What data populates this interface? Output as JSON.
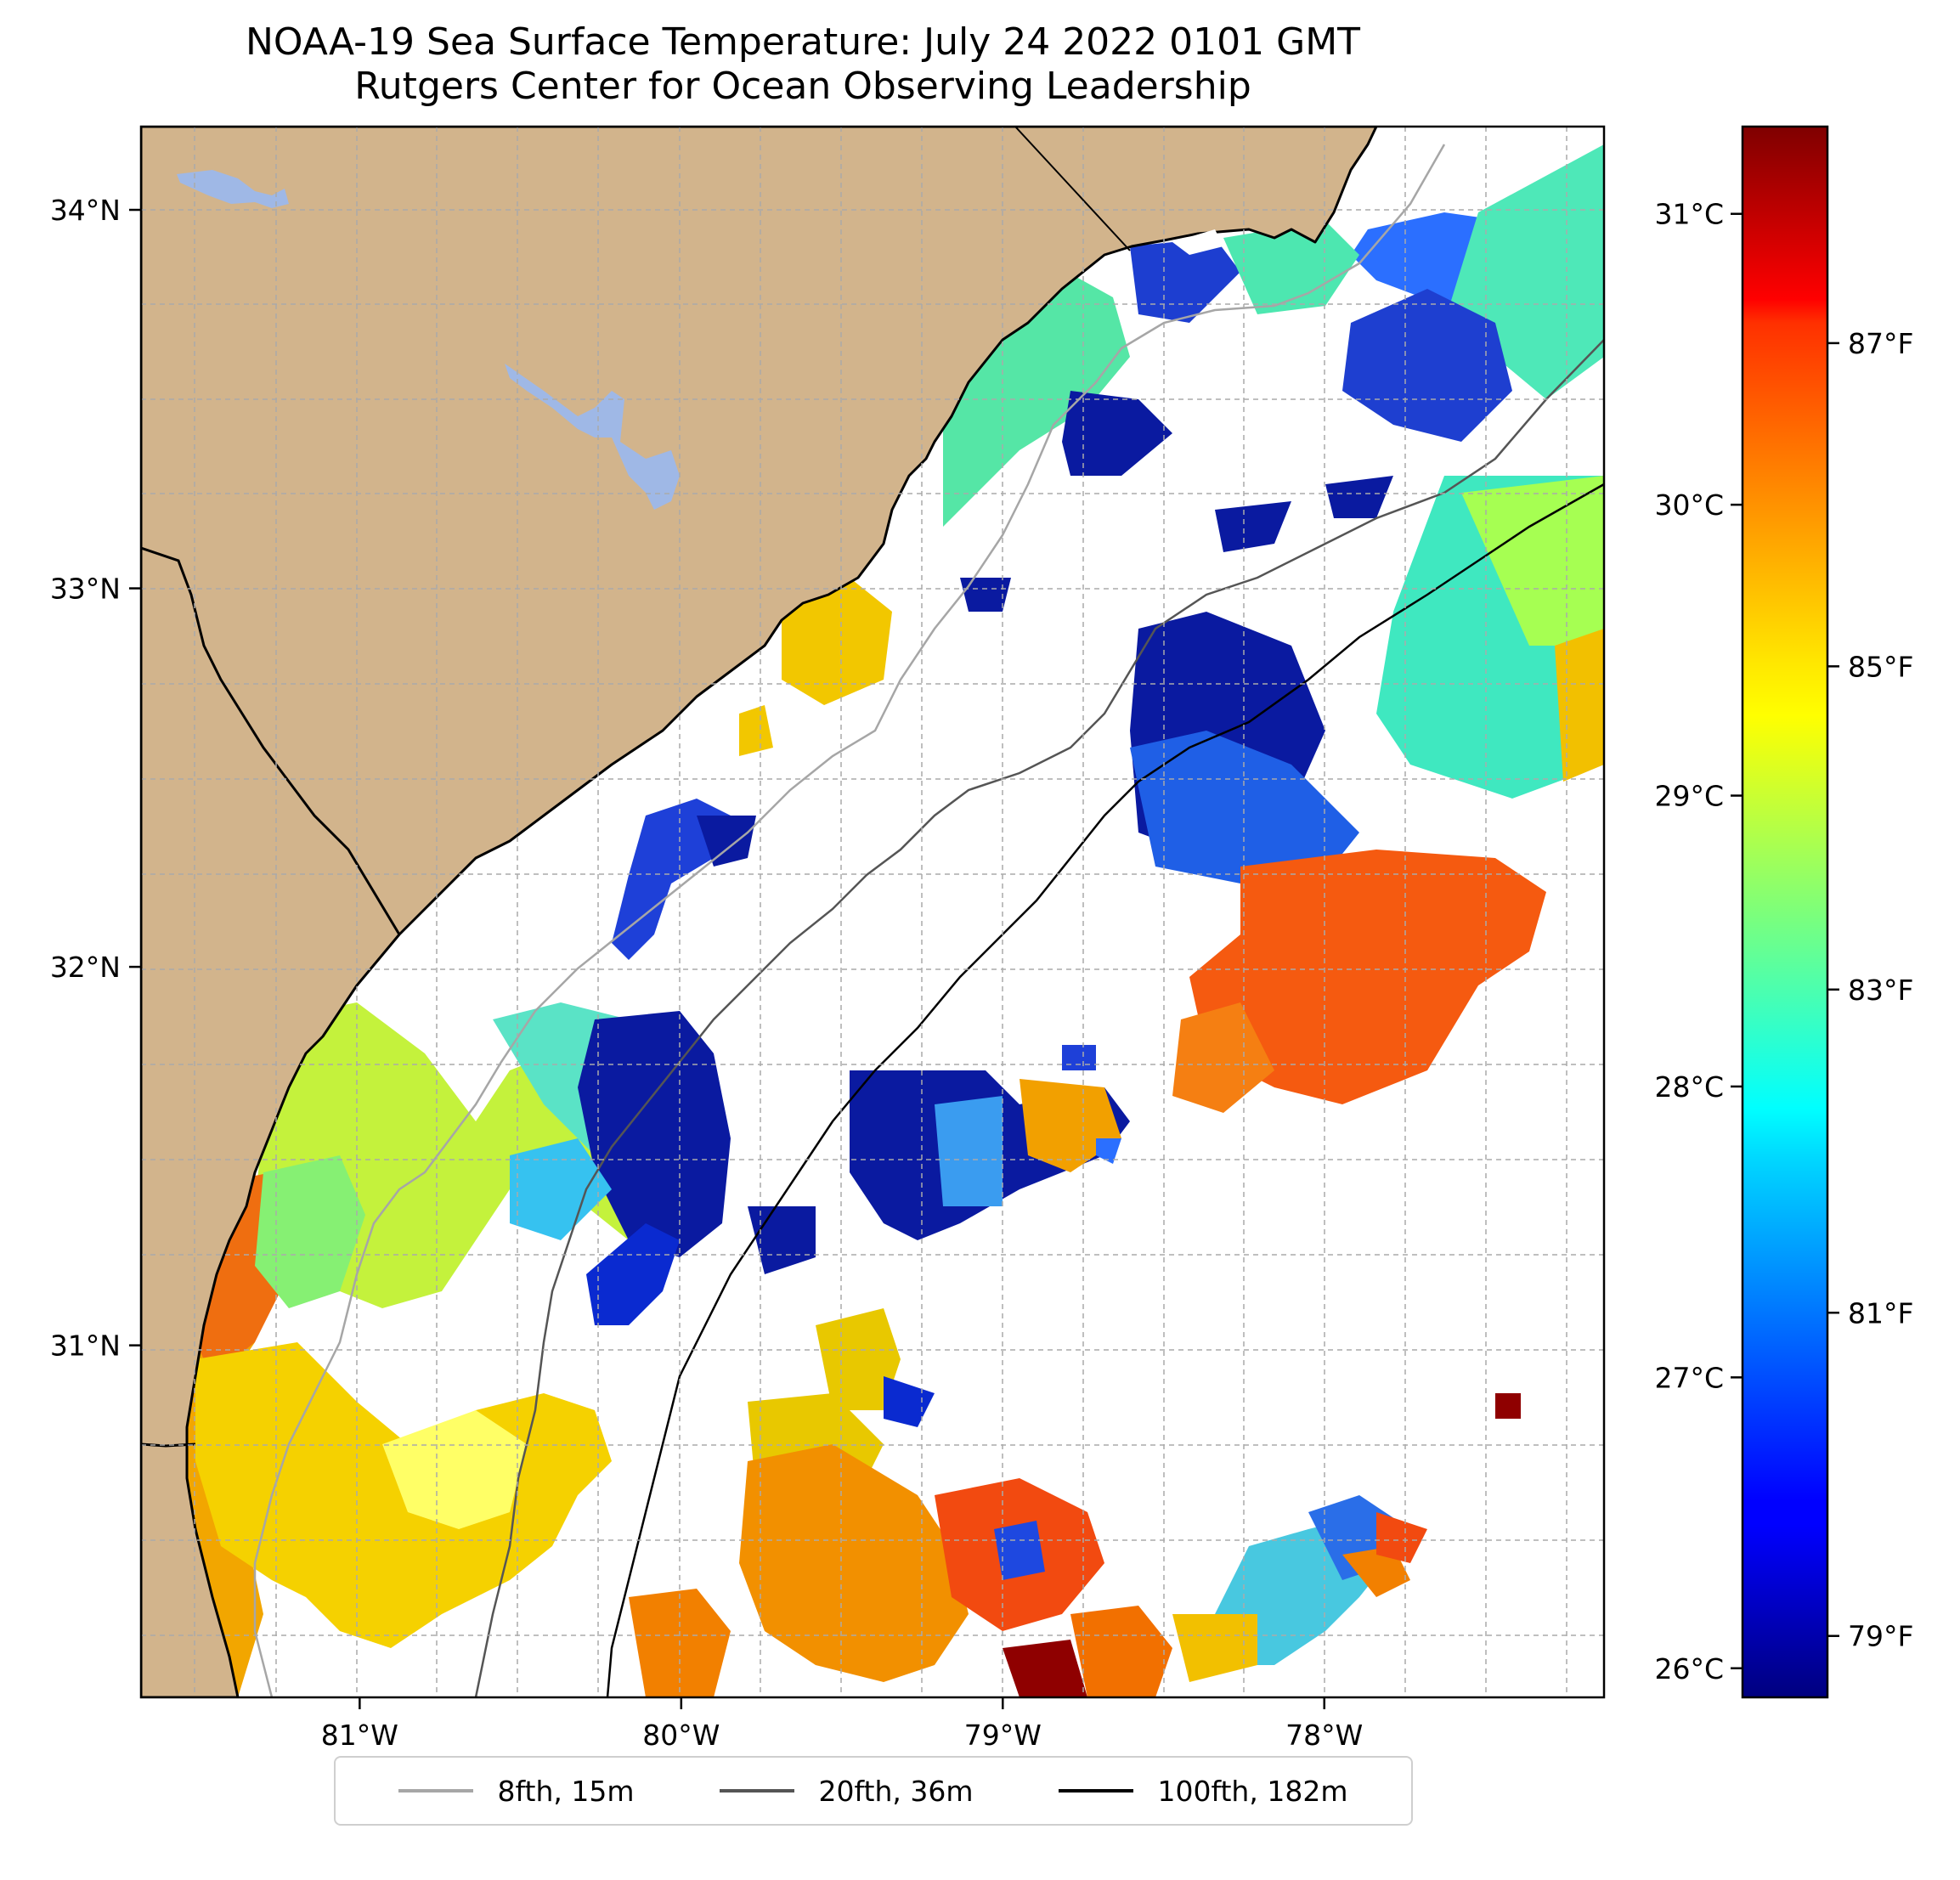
{
  "title": {
    "line1": "NOAA-19 Sea Surface Temperature: July 24 2022 0101 GMT",
    "line2": "Rutgers Center for Ocean Observing Leadership"
  },
  "map": {
    "lon_range": [
      -81.68,
      -77.13
    ],
    "lat_range": [
      30.07,
      34.22
    ],
    "lat_ticks": [
      {
        "value": 34,
        "label": "34°N"
      },
      {
        "value": 33,
        "label": "33°N"
      },
      {
        "value": 32,
        "label": "32°N"
      },
      {
        "value": 31,
        "label": "31°N"
      }
    ],
    "lon_ticks": [
      {
        "value": -81,
        "label": "81°W"
      },
      {
        "value": -80,
        "label": "80°W"
      },
      {
        "value": -79,
        "label": "79°W"
      },
      {
        "value": -78,
        "label": "78°W"
      }
    ],
    "colors": {
      "land": "#d2b48c",
      "water_bodies": "#9fb8e6",
      "ocean_no_data": "#ffffff",
      "grid": "#aaaaaa"
    }
  },
  "colorbar": {
    "colormap": "jet",
    "range_c": [
      25.9,
      31.3
    ],
    "celsius_ticks": [
      {
        "value": 26,
        "label": "26°C"
      },
      {
        "value": 27,
        "label": "27°C"
      },
      {
        "value": 28,
        "label": "28°C"
      },
      {
        "value": 29,
        "label": "29°C"
      },
      {
        "value": 30,
        "label": "30°C"
      },
      {
        "value": 31,
        "label": "31°C"
      }
    ],
    "fahrenheit_ticks": [
      {
        "value": 79,
        "label": "79°F"
      },
      {
        "value": 81,
        "label": "81°F"
      },
      {
        "value": 83,
        "label": "83°F"
      },
      {
        "value": 85,
        "label": "85°F"
      },
      {
        "value": 87,
        "label": "87°F"
      }
    ]
  },
  "legend": {
    "items": [
      {
        "label": "8fth, 15m",
        "color": "#a6a6a6"
      },
      {
        "label": "20fth, 36m",
        "color": "#555555"
      },
      {
        "label": "100fth, 182m",
        "color": "#000000"
      }
    ]
  }
}
